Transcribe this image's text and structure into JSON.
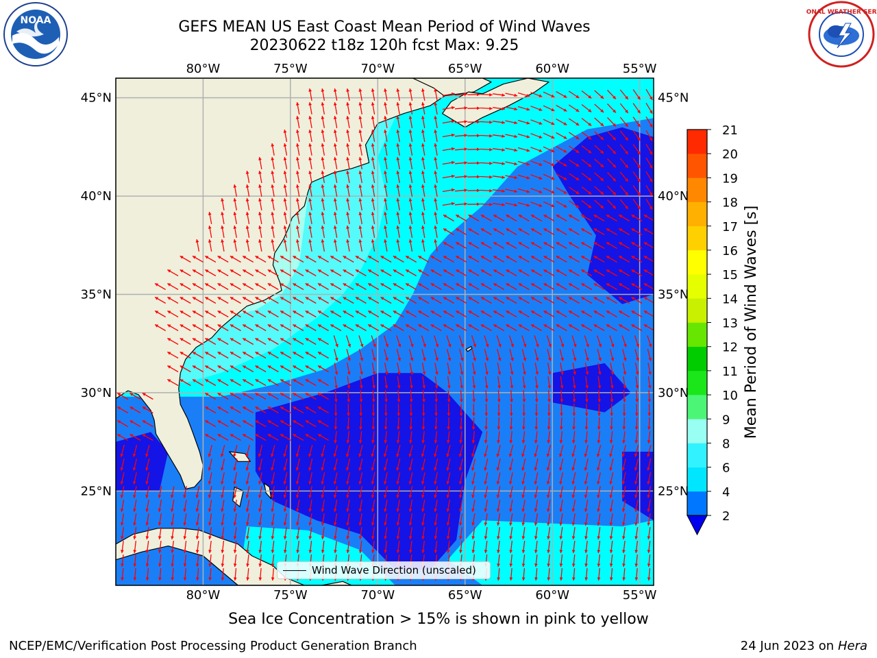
{
  "title": {
    "line1": "GEFS MEAN US East Coast Mean Period of Wind Waves",
    "line2": "20230622 t18z 120h fcst   Max: 9.25"
  },
  "logos": {
    "left": {
      "icon": "noaa-logo",
      "text": "NOAA"
    },
    "right": {
      "icon": "nws-logo",
      "text": "NATIONAL WEATHER SERVICE"
    }
  },
  "map": {
    "lon_labels": [
      "80°W",
      "75°W",
      "70°W",
      "65°W",
      "60°W",
      "55°W"
    ],
    "lat_labels": [
      "45°N",
      "40°N",
      "35°N",
      "30°N",
      "25°N"
    ],
    "lon_values": [
      -80,
      -75,
      -70,
      -65,
      -60,
      -55
    ],
    "lat_values": [
      45,
      40,
      35,
      30,
      25
    ],
    "extent": {
      "lon": [
        -85,
        -54.2
      ],
      "lat": [
        20.2,
        46
      ]
    },
    "land_color": "#efefdc",
    "vector_color": "#ff0000",
    "legend_label": "Wind Wave Direction (unscaled)"
  },
  "colorbar": {
    "label": "Mean Period of Wind Waves [s]",
    "tick_labels": [
      "2",
      "4",
      "6",
      "8",
      "9",
      "10",
      "11",
      "12",
      "13",
      "14",
      "15",
      "16",
      "17",
      "18",
      "19",
      "20",
      "21"
    ],
    "colors": [
      "#0077ff",
      "#00e6ff",
      "#33f2ff",
      "#99fff2",
      "#4df577",
      "#1ae61a",
      "#00cc00",
      "#66e600",
      "#c8f000",
      "#e6ff00",
      "#ffff00",
      "#ffd000",
      "#ffb000",
      "#ff8800",
      "#ff5500",
      "#ff2a00"
    ],
    "extend_low_color": "#0000ee"
  },
  "field_colors": {
    "lt2": "#1414e6",
    "p2_4": "#1a7ff7",
    "p4_6": "#00ffff",
    "p6_8": "#55fafa",
    "p8_9": "#a8ffef"
  },
  "caption": "Sea Ice Concentration > 15% is shown in pink to yellow",
  "footer": {
    "left": "NCEP/EMC/Verification Post Processing Product Generation Branch",
    "right_date": "24 Jun 2023 on",
    "right_host": "Hera"
  }
}
